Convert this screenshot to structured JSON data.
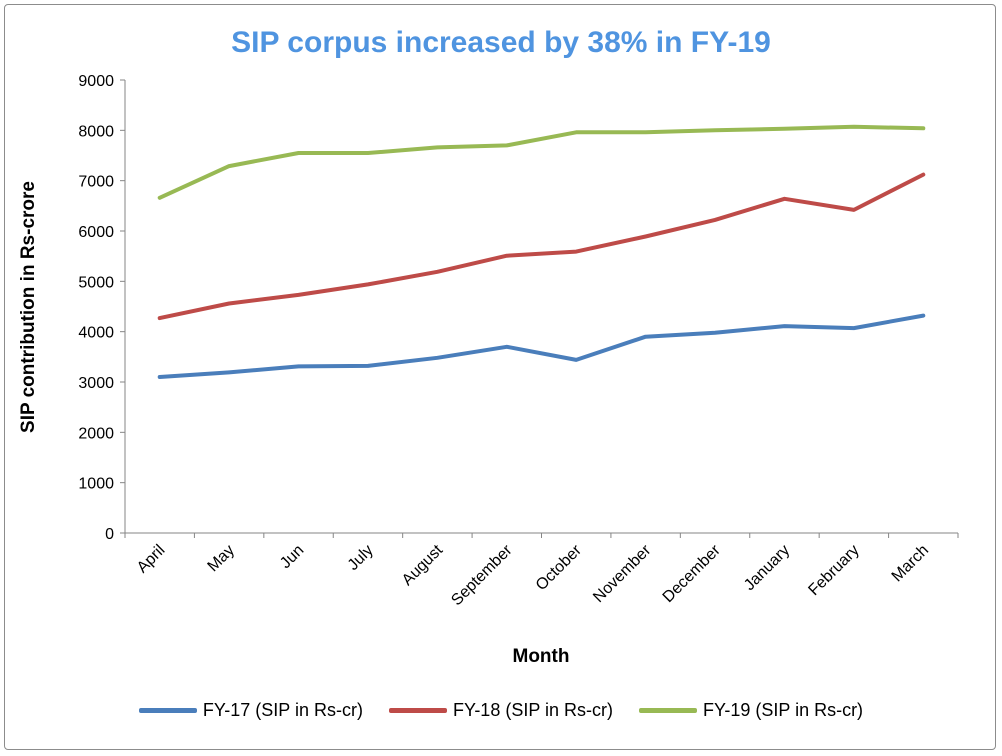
{
  "chart_data": {
    "type": "line",
    "title": "SIP corpus increased by 38% in FY-19",
    "xlabel": "Month",
    "ylabel": "SIP contribution in Rs-crore",
    "ylim": [
      0,
      9000
    ],
    "yticks": [
      0,
      1000,
      2000,
      3000,
      4000,
      5000,
      6000,
      7000,
      8000,
      9000
    ],
    "categories": [
      "April",
      "May",
      "Jun",
      "July",
      "August",
      "September",
      "October",
      "November",
      "December",
      "January",
      "February",
      "March"
    ],
    "grid": false,
    "legend_position": "bottom",
    "series": [
      {
        "name": "FY-17 (SIP in Rs-cr)",
        "color": "#4a7ebb",
        "values": [
          3100,
          3190,
          3310,
          3320,
          3480,
          3700,
          3440,
          3900,
          3980,
          4110,
          4070,
          4320
        ]
      },
      {
        "name": "FY-18 (SIP in Rs-cr)",
        "color": "#be4b48",
        "values": [
          4270,
          4560,
          4730,
          4940,
          5190,
          5510,
          5590,
          5890,
          6220,
          6640,
          6420,
          7120
        ]
      },
      {
        "name": "FY-19 (SIP in Rs-cr)",
        "color": "#98b954",
        "values": [
          6660,
          7290,
          7550,
          7550,
          7660,
          7700,
          7960,
          7960,
          8000,
          8030,
          8070,
          8040
        ]
      }
    ]
  }
}
